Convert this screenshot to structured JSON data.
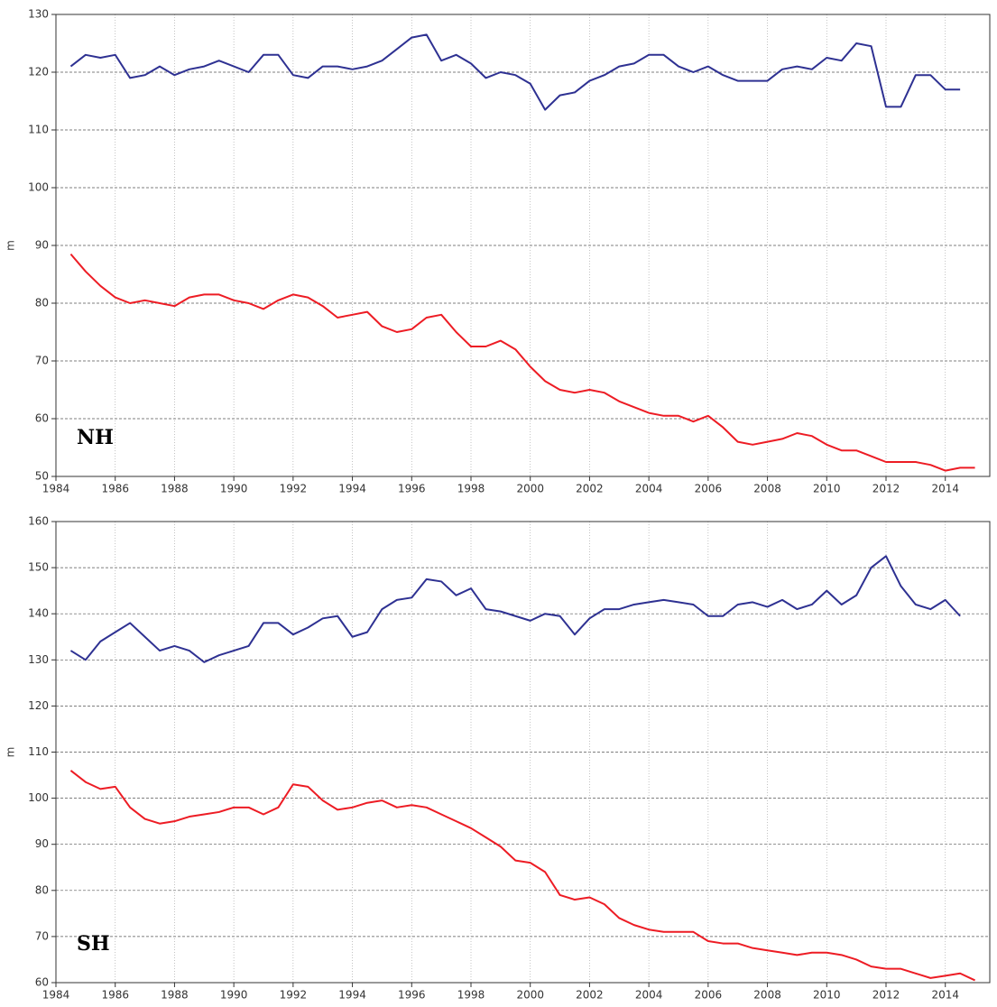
{
  "chart_data": [
    {
      "type": "line",
      "annotation": "NH",
      "y_label": "m",
      "x": [
        1984.5,
        1985,
        1985.5,
        1986,
        1986.5,
        1987,
        1987.5,
        1988,
        1988.5,
        1989,
        1989.5,
        1990,
        1990.5,
        1991,
        1991.5,
        1992,
        1992.5,
        1993,
        1993.5,
        1994,
        1994.5,
        1995,
        1995.5,
        1996,
        1996.5,
        1997,
        1997.5,
        1998,
        1998.5,
        1999,
        1999.5,
        2000,
        2000.5,
        2001,
        2001.5,
        2002,
        2002.5,
        2003,
        2003.5,
        2004,
        2004.5,
        2005,
        2005.5,
        2006,
        2006.5,
        2007,
        2007.5,
        2008,
        2008.5,
        2009,
        2009.5,
        2010,
        2010.5,
        2011,
        2011.5,
        2012,
        2012.5,
        2013,
        2013.5,
        2014,
        2014.5,
        2015
      ],
      "series": [
        {
          "color": "#2e3192",
          "values": [
            121,
            123,
            122.5,
            123,
            119,
            119.5,
            121,
            119.5,
            120.5,
            121,
            122,
            121,
            120,
            123,
            123,
            119.5,
            119,
            121,
            121,
            120.5,
            121,
            122,
            124,
            126,
            126.5,
            122,
            123,
            121.5,
            119,
            120,
            119.5,
            118,
            113.5,
            116,
            116.5,
            118.5,
            119.5,
            121,
            121.5,
            123,
            123,
            121,
            120,
            121,
            119.5,
            118.5,
            118.5,
            118.5,
            120.5,
            121,
            120.5,
            122.5,
            122,
            125,
            124.5,
            114,
            114,
            119.5,
            119.5,
            117,
            117,
            null
          ]
        },
        {
          "color": "#ed1c24",
          "values": [
            88.5,
            85.5,
            83,
            81,
            80,
            80.5,
            80,
            79.5,
            81,
            81.5,
            81.5,
            80.5,
            80,
            79,
            80.5,
            81.5,
            81,
            79.5,
            77.5,
            78,
            78.5,
            76,
            75,
            75.5,
            77.5,
            78,
            75,
            72.5,
            72.5,
            73.5,
            72,
            69,
            66.5,
            65,
            64.5,
            65,
            64.5,
            63,
            62,
            61,
            60.5,
            60.5,
            59.5,
            60.5,
            58.5,
            56,
            55.5,
            56,
            56.5,
            57.5,
            57,
            55.5,
            54.5,
            54.5,
            53.5,
            52.5,
            52.5,
            52.5,
            52,
            51,
            51.5,
            51.5
          ]
        }
      ],
      "xlim": [
        1984,
        2015.5
      ],
      "xticks": [
        1984,
        1986,
        1988,
        1990,
        1992,
        1994,
        1996,
        1998,
        2000,
        2002,
        2004,
        2006,
        2008,
        2010,
        2012,
        2014
      ],
      "ylim": [
        50,
        130
      ],
      "yticks": [
        50,
        60,
        70,
        80,
        90,
        100,
        110,
        120,
        130
      ],
      "grid": true
    },
    {
      "type": "line",
      "annotation": "SH",
      "y_label": "m",
      "x": [
        1984.5,
        1985,
        1985.5,
        1986,
        1986.5,
        1987,
        1987.5,
        1988,
        1988.5,
        1989,
        1989.5,
        1990,
        1990.5,
        1991,
        1991.5,
        1992,
        1992.5,
        1993,
        1993.5,
        1994,
        1994.5,
        1995,
        1995.5,
        1996,
        1996.5,
        1997,
        1997.5,
        1998,
        1998.5,
        1999,
        1999.5,
        2000,
        2000.5,
        2001,
        2001.5,
        2002,
        2002.5,
        2003,
        2003.5,
        2004,
        2004.5,
        2005,
        2005.5,
        2006,
        2006.5,
        2007,
        2007.5,
        2008,
        2008.5,
        2009,
        2009.5,
        2010,
        2010.5,
        2011,
        2011.5,
        2012,
        2012.5,
        2013,
        2013.5,
        2014,
        2014.5,
        2015
      ],
      "series": [
        {
          "color": "#2e3192",
          "values": [
            132,
            130,
            134,
            136,
            138,
            135,
            132,
            133,
            132,
            129.5,
            131,
            132,
            133,
            138,
            138,
            135.5,
            137,
            139,
            139.5,
            135,
            136,
            141,
            143,
            143.5,
            147.5,
            147,
            144,
            145.5,
            141,
            140.5,
            139.5,
            138.5,
            140,
            139.5,
            135.5,
            139,
            141,
            141,
            142,
            142.5,
            143,
            142.5,
            142,
            139.5,
            139.5,
            142,
            142.5,
            141.5,
            143,
            141,
            142,
            145,
            142,
            144,
            150,
            152.5,
            146,
            142,
            141,
            143,
            139.5,
            null
          ]
        },
        {
          "color": "#ed1c24",
          "values": [
            106,
            103.5,
            102,
            102.5,
            98,
            95.5,
            94.5,
            95,
            96,
            96.5,
            97,
            98,
            98,
            96.5,
            98,
            103,
            102.5,
            99.5,
            97.5,
            98,
            99,
            99.5,
            98,
            98.5,
            98,
            96.5,
            95,
            93.5,
            91.5,
            89.5,
            86.5,
            86,
            84,
            79,
            78,
            78.5,
            77,
            74,
            72.5,
            71.5,
            71,
            71,
            71,
            69,
            68.5,
            68.5,
            67.5,
            67,
            66.5,
            66,
            66.5,
            66.5,
            66,
            65,
            63.5,
            63,
            63,
            62,
            61,
            61.5,
            62,
            60.5
          ]
        }
      ],
      "xlim": [
        1984,
        2015.5
      ],
      "xticks": [
        1984,
        1986,
        1988,
        1990,
        1992,
        1994,
        1996,
        1998,
        2000,
        2002,
        2004,
        2006,
        2008,
        2010,
        2012,
        2014
      ],
      "ylim": [
        60,
        160
      ],
      "yticks": [
        60,
        70,
        80,
        90,
        100,
        110,
        120,
        130,
        140,
        150,
        160
      ],
      "grid": true
    }
  ]
}
